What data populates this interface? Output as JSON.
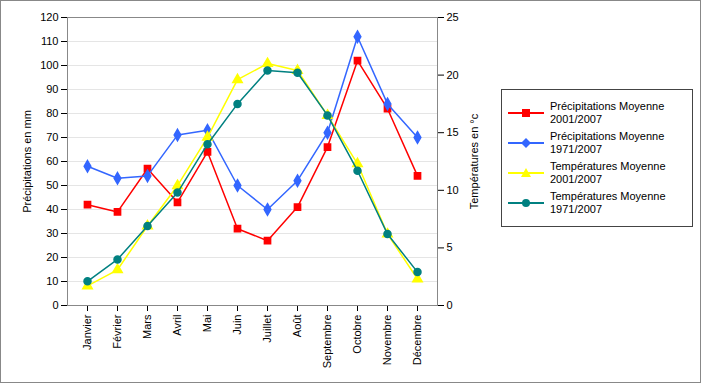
{
  "chart_data": {
    "type": "line",
    "ylabel": "Précipitations en mm",
    "y2label": "Températures en °c",
    "categories": [
      "Janvier",
      "Février",
      "Mars",
      "Avril",
      "Mai",
      "Juin",
      "Juillet",
      "Août",
      "Septembre",
      "Octobre",
      "Novembre",
      "Décembre"
    ],
    "series": [
      {
        "name": "Précipitations Moyenne 2001/2007",
        "color": "#ff0000",
        "marker": "square",
        "values": [
          42,
          39,
          57,
          43,
          64,
          32,
          27,
          41,
          66,
          102,
          82,
          54
        ]
      },
      {
        "name": "Précipitations Moyenne 1971/2007",
        "color": "#3366ff",
        "marker": "diamond",
        "values": [
          58,
          53,
          54,
          71,
          73,
          50,
          40,
          52,
          72,
          112,
          84,
          70
        ]
      },
      {
        "name": "Températures Moyenne 2001/2007",
        "color": "#ffff00",
        "marker": "triangle",
        "axis": "y2",
        "values": [
          1.7,
          3.1,
          6.9,
          10.4,
          14.6,
          19.6,
          21,
          20.4,
          16.5,
          12.3,
          6.2,
          2.3
        ]
      },
      {
        "name": "Températures Moyenne 1971/2007",
        "color": "#008080",
        "marker": "circle",
        "axis": "y2",
        "values": [
          2.1,
          4,
          6.9,
          9.8,
          14,
          17.5,
          20.4,
          20.2,
          16.5,
          11.7,
          6.2,
          2.9
        ]
      }
    ],
    "ylim": [
      0,
      120
    ],
    "yticks": [
      0,
      10,
      20,
      30,
      40,
      50,
      60,
      70,
      80,
      90,
      100,
      110,
      120
    ],
    "y2lim": [
      0,
      25
    ],
    "y2ticks": [
      0,
      5,
      10,
      15,
      20,
      25
    ],
    "grid": true,
    "legend": "right"
  }
}
